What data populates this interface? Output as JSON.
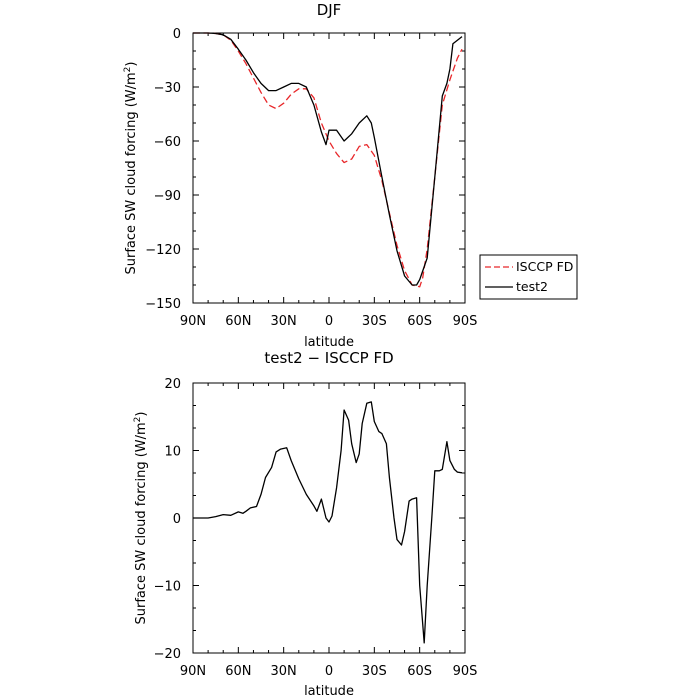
{
  "chart_data": [
    {
      "type": "line",
      "title": "DJF",
      "xlabel": "latitude",
      "ylabel": "Surface SW cloud forcing (W/m",
      "ylabel_sup": "2",
      "ylabel_end": ")",
      "xlim": [
        90,
        -90
      ],
      "ylim": [
        -150,
        0
      ],
      "x_ticks": [
        90,
        60,
        30,
        0,
        -30,
        -60,
        -90
      ],
      "x_tick_labels": [
        "90N",
        "60N",
        "30N",
        "0",
        "30S",
        "60S",
        "90S"
      ],
      "y_ticks": [
        0,
        -30,
        -60,
        -90,
        -120,
        -150
      ],
      "y_tick_labels": [
        "0",
        "−30",
        "−60",
        "−90",
        "−120",
        "−150"
      ],
      "legend_position": "right",
      "series": [
        {
          "name": "ISCCP FD",
          "color": "#e8272a",
          "dash": "dashed",
          "x": [
            90,
            80,
            75,
            70,
            65,
            60,
            55,
            50,
            45,
            40,
            35,
            30,
            25,
            20,
            15,
            10,
            5,
            0,
            -5,
            -10,
            -15,
            -20,
            -25,
            -30,
            -35,
            -40,
            -45,
            -50,
            -55,
            -60,
            -62,
            -65,
            -70,
            -75,
            -80,
            -85,
            -88
          ],
          "y": [
            0,
            0,
            -0.3,
            -1,
            -4,
            -10,
            -17,
            -25,
            -33,
            -40,
            -42,
            -39,
            -34,
            -31,
            -31,
            -36,
            -50,
            -60,
            -67,
            -72,
            -70,
            -63,
            -62,
            -68,
            -82,
            -100,
            -118,
            -132,
            -140,
            -141,
            -136,
            -120,
            -80,
            -40,
            -26,
            -14,
            -9
          ]
        },
        {
          "name": "test2",
          "color": "#000000",
          "dash": "solid",
          "x": [
            90,
            80,
            75,
            70,
            65,
            60,
            55,
            50,
            45,
            40,
            35,
            30,
            25,
            20,
            15,
            10,
            5,
            2,
            0,
            -5,
            -10,
            -15,
            -20,
            -25,
            -28,
            -30,
            -35,
            -40,
            -45,
            -50,
            -55,
            -58,
            -60,
            -65,
            -70,
            -75,
            -78,
            -80,
            -82,
            -85,
            -88
          ],
          "y": [
            0,
            0,
            -0.3,
            -1,
            -3.5,
            -9,
            -15,
            -22,
            -28,
            -32,
            -32,
            -30,
            -28,
            -28,
            -30,
            -40,
            -55,
            -62,
            -54,
            -54,
            -60,
            -56,
            -50,
            -46,
            -50,
            -58,
            -80,
            -101,
            -121,
            -135,
            -140,
            -140,
            -137,
            -125,
            -80,
            -35,
            -28,
            -20,
            -6,
            -4,
            -2
          ]
        }
      ]
    },
    {
      "type": "line",
      "title": "test2 − ISCCP FD",
      "xlabel": "latitude",
      "ylabel": "Surface SW cloud forcing (W/m",
      "ylabel_sup": "2",
      "ylabel_end": ")",
      "xlim": [
        90,
        -90
      ],
      "ylim": [
        -20,
        20
      ],
      "x_ticks": [
        90,
        60,
        30,
        0,
        -30,
        -60,
        -90
      ],
      "x_tick_labels": [
        "90N",
        "60N",
        "30N",
        "0",
        "30S",
        "60S",
        "90S"
      ],
      "y_ticks": [
        20,
        10,
        0,
        -10,
        -20
      ],
      "y_tick_labels": [
        "20",
        "10",
        "0",
        "−10",
        "−20"
      ],
      "series": [
        {
          "color": "#000000",
          "dash": "solid",
          "x": [
            90,
            80,
            75,
            70,
            65,
            60,
            57,
            55,
            52,
            48,
            45,
            42,
            38,
            35,
            32,
            28,
            25,
            20,
            15,
            10,
            8,
            5,
            2,
            0,
            -2,
            -5,
            -8,
            -10,
            -13,
            -15,
            -18,
            -20,
            -22,
            -25,
            -28,
            -30,
            -33,
            -35,
            -38,
            -40,
            -43,
            -45,
            -48,
            -50,
            -53,
            -55,
            -58,
            -60,
            -63,
            -65,
            -68,
            -70,
            -73,
            -75,
            -78,
            -80,
            -83,
            -85,
            -88
          ],
          "y": [
            0,
            0,
            0.2,
            0.5,
            0.4,
            0.9,
            0.7,
            1.0,
            1.5,
            1.7,
            3.5,
            6,
            7.5,
            9.8,
            10.2,
            10.4,
            8.5,
            5.8,
            3.5,
            1.8,
            1.0,
            2.8,
            0,
            -0.6,
            0.3,
            4.5,
            10,
            16,
            14.5,
            11,
            8.2,
            9.5,
            14,
            17,
            17.2,
            14.3,
            12.8,
            12.5,
            11,
            6,
            0,
            -3.2,
            -4,
            -2,
            2.5,
            2.8,
            3,
            -10,
            -18.5,
            -10,
            0,
            7,
            7,
            7.2,
            11.3,
            8.5,
            7.2,
            6.8,
            6.7
          ]
        }
      ]
    }
  ],
  "legend": {
    "items": [
      "ISCCP FD",
      "test2"
    ]
  }
}
